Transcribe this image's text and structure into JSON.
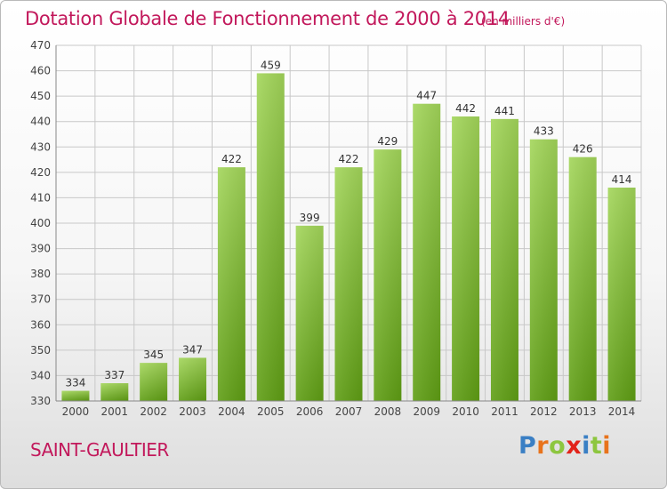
{
  "header": {
    "title": "Dotation Globale de Fonctionnement de 2000 à 2014",
    "unit": "(en milliers d'€)"
  },
  "footer": {
    "place": "SAINT-GAULTIER",
    "brand": {
      "letters": [
        "P",
        "r",
        "o",
        "x",
        "i",
        "t",
        "i"
      ],
      "colors": [
        "#3a7fc4",
        "#e8731c",
        "#8dc63f",
        "#e2231a",
        "#3a7fc4",
        "#8dc63f",
        "#e8731c"
      ]
    }
  },
  "colors": {
    "bar_top": "#a3d65a",
    "bar_bottom": "#5f9e14",
    "grid": "#c8c8c8"
  },
  "chart_data": {
    "type": "bar",
    "title": "Dotation Globale de Fonctionnement de 2000 à 2014",
    "xlabel": "",
    "ylabel": "",
    "categories": [
      "2000",
      "2001",
      "2002",
      "2003",
      "2004",
      "2005",
      "2006",
      "2007",
      "2008",
      "2009",
      "2010",
      "2011",
      "2012",
      "2013",
      "2014"
    ],
    "values": [
      334,
      337,
      345,
      347,
      422,
      459,
      399,
      422,
      429,
      447,
      442,
      441,
      433,
      426,
      414
    ],
    "ylim": [
      330,
      470
    ],
    "yticks": [
      330,
      340,
      350,
      360,
      370,
      380,
      390,
      400,
      410,
      420,
      430,
      440,
      450,
      460,
      470
    ],
    "grid": true,
    "data_labels": true
  }
}
